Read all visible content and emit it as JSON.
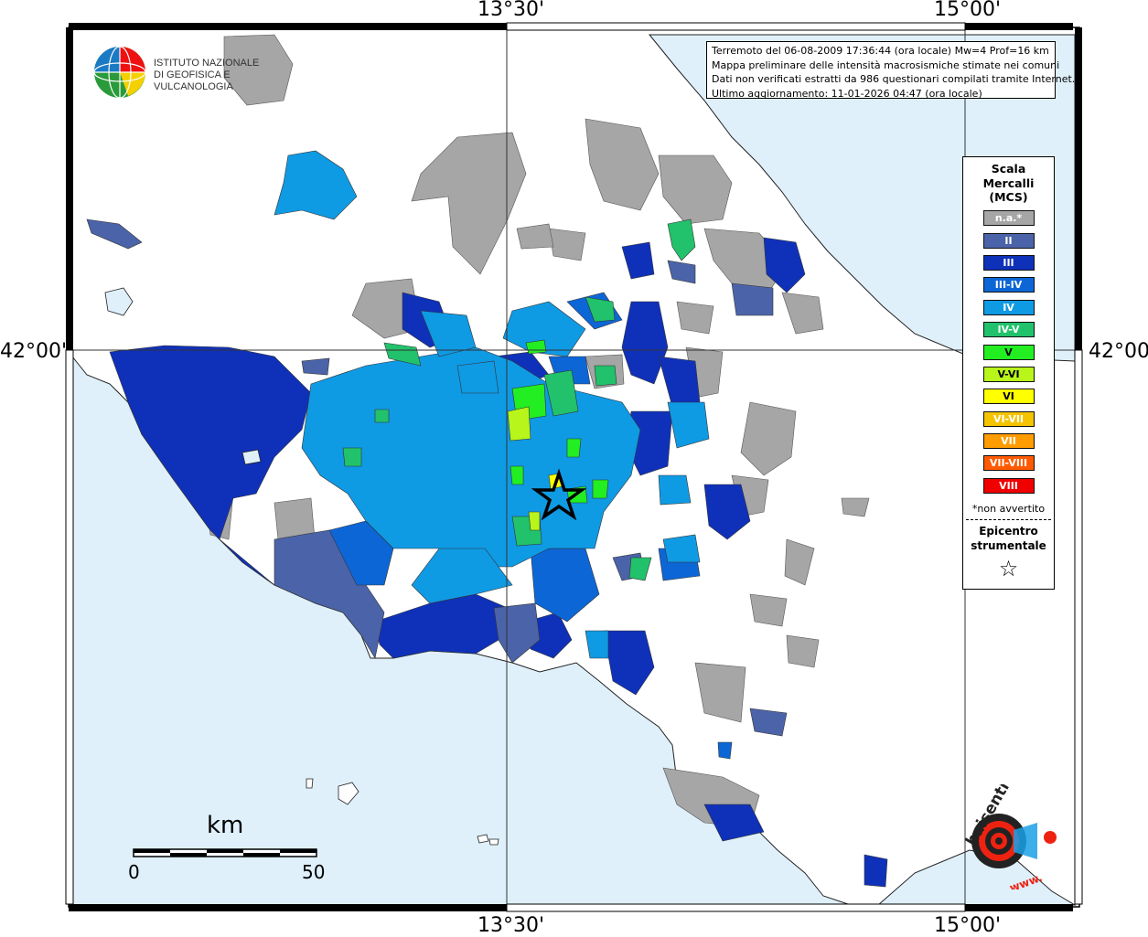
{
  "map": {
    "ticks": {
      "top_left": "13°30'",
      "top_right": "15°00'",
      "bottom_left": "13°30'",
      "bottom_right": "15°00'",
      "left_lat": "42°00'",
      "right_lat": "42°00'"
    },
    "colors": {
      "sea": "#dff0fb",
      "land": "#ffffff",
      "na": "#a6a6a6",
      "II": "#4b63a8",
      "III": "#0f31b9",
      "III-IV": "#0d66d6",
      "IV": "#0f9ae4",
      "IV-V": "#21c26b",
      "V": "#22ee22",
      "V-VI": "#b8f51a",
      "VI": "#ffff00",
      "VI-VII": "#f5c400",
      "VII": "#ff9c00",
      "VII-VIII": "#ff5a00",
      "VIII": "#f00000"
    }
  },
  "info": {
    "line1": "Terremoto del 06-08-2009 17:36:44 (ora locale) Mw=4 Prof=16 km",
    "line2": "Mappa preliminare delle intensità macrosismiche stimate nei comuni",
    "line3": "Dati non verificati estratti da 986 questionari compilati tramite Internet.",
    "line4": "Ultimo aggiornamento: 11-01-2026 04:47 (ora locale)"
  },
  "logo": {
    "line1": "ISTITUTO NAZIONALE",
    "line2": "DI GEOFISICA E VULCANOLOGIA"
  },
  "legend": {
    "title1": "Scala",
    "title2": "Mercalli",
    "title3": "(MCS)",
    "items": [
      {
        "label": "n.a.*",
        "color": "#a6a6a6"
      },
      {
        "label": "II",
        "color": "#4b63a8"
      },
      {
        "label": "III",
        "color": "#0f31b9"
      },
      {
        "label": "III-IV",
        "color": "#0d66d6"
      },
      {
        "label": "IV",
        "color": "#0f9ae4"
      },
      {
        "label": "IV-V",
        "color": "#21c26b"
      },
      {
        "label": "V",
        "color": "#22ee22"
      },
      {
        "label": "V-VI",
        "color": "#b8f51a"
      },
      {
        "label": "VI",
        "color": "#ffff00"
      },
      {
        "label": "VI-VII",
        "color": "#f5c400"
      },
      {
        "label": "VII",
        "color": "#ff9c00"
      },
      {
        "label": "VII-VIII",
        "color": "#ff5a00"
      },
      {
        "label": "VIII",
        "color": "#f00000"
      }
    ],
    "note": "*non avvertito",
    "epi1": "Epicentro",
    "epi2": "strumentale",
    "star": "☆"
  },
  "scale": {
    "unit": "km",
    "start": "0",
    "end": "50"
  },
  "haisentito": {
    "text": "haisentitoilterremoto.it",
    "prefix": "www."
  }
}
